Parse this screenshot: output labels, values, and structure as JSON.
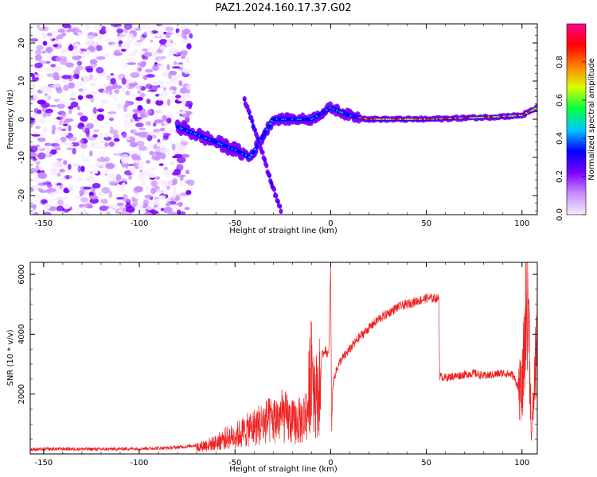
{
  "title": "PAZ1.2024.160.17.37.G02",
  "chart_data": [
    {
      "type": "heatmap",
      "xlabel": "Height of straight line (km)",
      "ylabel": "Frequency (Hz)",
      "xlim": [
        -157,
        108
      ],
      "ylim": [
        -25,
        25
      ],
      "xticks": [
        -150,
        -100,
        -50,
        0,
        50,
        100
      ],
      "yticks": [
        -20,
        -10,
        0,
        10,
        20
      ],
      "colorbar": {
        "label": "Normalized spectral amplitude",
        "range": [
          0,
          1
        ],
        "ticks": [
          0.0,
          0.2,
          0.4,
          0.6,
          0.8
        ],
        "colormap": "gist_rainbow",
        "colors": [
          "#f5ecff",
          "#c78cff",
          "#7a00ff",
          "#0000ff",
          "#00c8ff",
          "#00ff40",
          "#d8ff00",
          "#ff8000",
          "#ff0000",
          "#ff0090"
        ]
      },
      "features": {
        "noise_region_x": [
          -157,
          -73
        ],
        "main_signal": [
          [
            -80,
            -2
          ],
          [
            -70,
            -4
          ],
          [
            -60,
            -6
          ],
          [
            -50,
            -8
          ],
          [
            -42,
            -10
          ],
          [
            -30,
            0
          ],
          [
            -10,
            0
          ],
          [
            0,
            3
          ],
          [
            10,
            1
          ],
          [
            20,
            0
          ],
          [
            50,
            0
          ],
          [
            80,
            0.5
          ],
          [
            100,
            1
          ],
          [
            108,
            3
          ]
        ],
        "secondary_branch": [
          [
            -45,
            5
          ],
          [
            -38,
            -5
          ],
          [
            -32,
            -15
          ],
          [
            -26,
            -24
          ]
        ]
      }
    },
    {
      "type": "line",
      "xlabel": "Height of straight line (km)",
      "ylabel": "SNR (10 * v/v)",
      "xlim": [
        -157,
        108
      ],
      "ylim": [
        0,
        6400
      ],
      "xticks": [
        -150,
        -100,
        -50,
        0,
        50,
        100
      ],
      "yticks": [
        2000,
        4000,
        6000
      ],
      "color": "#ee2222",
      "series": [
        {
          "x": [
            -157,
            -140,
            -120,
            -100,
            -85,
            -75,
            -70,
            -65,
            -60,
            -55,
            -50,
            -45,
            -40,
            -35,
            -30,
            -25,
            -20,
            -15,
            -12,
            -10,
            -8,
            -5,
            -3,
            -1,
            0,
            0.5,
            1,
            2,
            3,
            5,
            10,
            15,
            20,
            25,
            30,
            35,
            40,
            45,
            50,
            55,
            56.5,
            57,
            60,
            65,
            70,
            75,
            80,
            85,
            90,
            95,
            100,
            103,
            105,
            108
          ],
          "y": [
            150,
            170,
            160,
            180,
            200,
            250,
            300,
            400,
            500,
            700,
            800,
            1000,
            1200,
            1400,
            1500,
            1700,
            1400,
            1500,
            1900,
            4500,
            2500,
            3200,
            3500,
            3300,
            6300,
            600,
            2200,
            2600,
            2800,
            3100,
            3500,
            3900,
            4200,
            4500,
            4700,
            4900,
            5000,
            5100,
            5200,
            5200,
            5200,
            2600,
            2550,
            2600,
            2650,
            2700,
            2600,
            2650,
            2700,
            2650,
            2000,
            5800,
            500,
            4200
          ]
        }
      ]
    }
  ]
}
